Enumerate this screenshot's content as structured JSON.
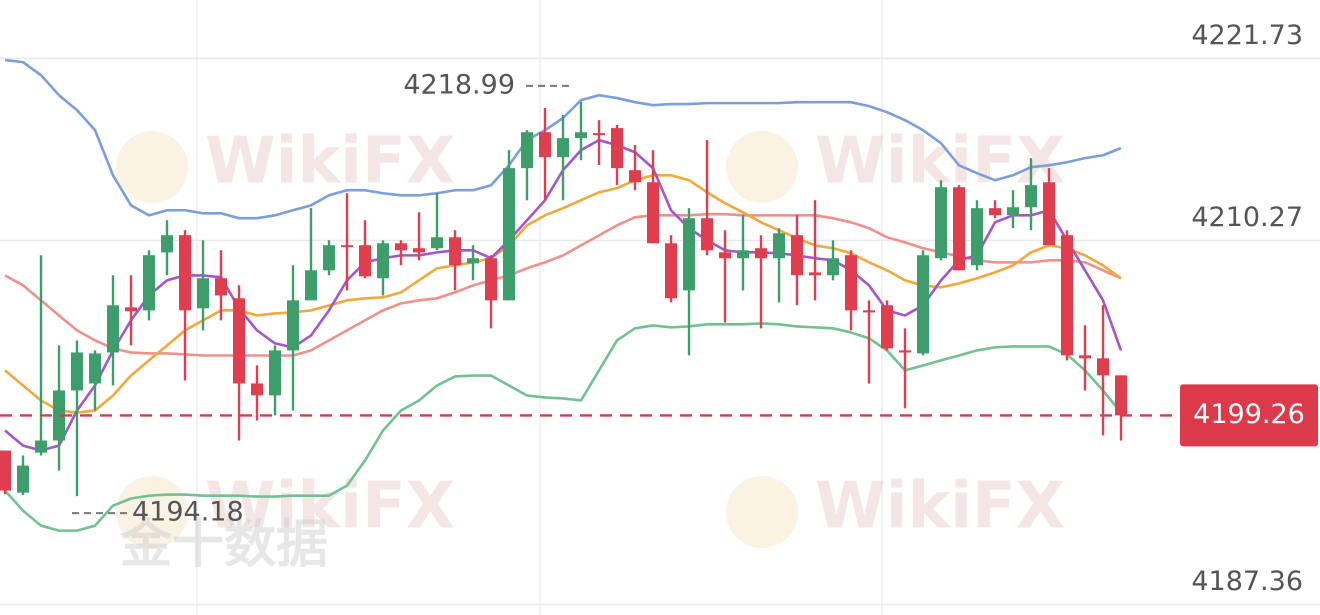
{
  "chart_data": {
    "type": "candlestick",
    "ylim": [
      4186.7,
      4225.4
    ],
    "yticks": [
      4221.73,
      4210.27,
      4187.36
    ],
    "grid": true,
    "up_color": "#3e9e6b",
    "down_color": "#e03e4e",
    "current_price": 4199.26,
    "current_price_color": "#dc3a4a",
    "high_label": 4218.99,
    "low_label": 4194.18,
    "watermarks": [
      "WikiFX",
      "WikiFX",
      "WikiFX",
      "WikiFX"
    ],
    "watermark_cn": "金十数据",
    "candles": {
      "open": [
        4197.05,
        4194.4,
        4196.92,
        4197.68,
        4200.83,
        4201.27,
        4203.22,
        4206.06,
        4205.87,
        4209.52,
        4210.6,
        4206.0,
        4207.89,
        4206.63,
        4201.27,
        4200.52,
        4203.35,
        4206.5,
        4208.39,
        4209.97,
        4209.97,
        4207.89,
        4210.09,
        4209.78,
        4209.78,
        4210.47,
        4208.83,
        4209.15,
        4206.5,
        4214.82,
        4217.08,
        4215.51,
        4216.71,
        4217.02,
        4217.34,
        4214.69,
        4213.93,
        4210.09,
        4207.13,
        4211.67,
        4209.52,
        4209.15,
        4209.78,
        4209.15,
        4210.6,
        4208.26,
        4208.08,
        4209.34,
        4205.87,
        4206.19,
        4203.35,
        4203.16,
        4209.15,
        4213.62,
        4208.71,
        4212.3,
        4211.86,
        4212.36,
        4213.93,
        4210.6,
        4203.04,
        4202.85,
        4201.78
      ],
      "high": [
        4197.05,
        4196.74,
        4209.34,
        4203.67,
        4203.98,
        4203.35,
        4208.08,
        4208.08,
        4209.65,
        4211.54,
        4210.91,
        4210.28,
        4209.65,
        4207.45,
        4202.41,
        4203.67,
        4208.71,
        4212.3,
        4210.28,
        4213.24,
        4211.54,
        4210.28,
        4210.28,
        4212.04,
        4213.24,
        4210.91,
        4209.97,
        4209.34,
        4215.95,
        4217.21,
        4218.6,
        4218.16,
        4218.99,
        4217.84,
        4217.53,
        4216.27,
        4215.95,
        4210.6,
        4212.3,
        4216.58,
        4210.91,
        4211.86,
        4210.6,
        4211.04,
        4211.86,
        4212.8,
        4210.28,
        4209.65,
        4206.5,
        4206.5,
        4204.74,
        4209.65,
        4214.06,
        4213.75,
        4212.8,
        4212.8,
        4213.43,
        4215.45,
        4214.82,
        4210.91,
        4204.93,
        4206.19,
        4201.78
      ],
      "low": [
        4194.3,
        4194.25,
        4196.74,
        4195.79,
        4194.18,
        4199.57,
        4201.15,
        4203.67,
        4205.24,
        4208.08,
        4201.46,
        4204.61,
        4205.24,
        4197.68,
        4198.94,
        4199.26,
        4199.57,
        4206.5,
        4208.08,
        4207.13,
        4207.89,
        4206.81,
        4208.71,
        4209.02,
        4209.65,
        4207.13,
        4207.76,
        4204.74,
        4206.5,
        4212.8,
        4212.8,
        4212.8,
        4215.32,
        4215.01,
        4213.75,
        4213.43,
        4210.09,
        4206.37,
        4203.04,
        4209.34,
        4205.11,
        4207.13,
        4204.74,
        4206.37,
        4206.19,
        4206.5,
        4207.76,
        4204.61,
        4201.27,
        4203.35,
        4199.7,
        4203.04,
        4209.02,
        4208.39,
        4208.39,
        4211.67,
        4211.04,
        4210.91,
        4209.97,
        4202.72,
        4200.83,
        4198.0,
        4197.68
      ],
      "close": [
        4194.53,
        4196.1,
        4197.68,
        4200.83,
        4203.22,
        4203.16,
        4206.19,
        4205.81,
        4209.34,
        4210.6,
        4205.87,
        4207.89,
        4206.81,
        4201.27,
        4200.52,
        4203.35,
        4206.5,
        4208.39,
        4209.97,
        4209.9,
        4208.01,
        4210.09,
        4209.65,
        4209.52,
        4210.47,
        4208.71,
        4209.15,
        4206.5,
        4214.82,
        4217.08,
        4215.51,
        4216.71,
        4217.08,
        4216.95,
        4214.82,
        4213.93,
        4210.09,
        4206.63,
        4211.67,
        4209.65,
        4209.15,
        4209.65,
        4209.15,
        4210.72,
        4208.08,
        4208.08,
        4209.15,
        4205.87,
        4205.74,
        4203.48,
        4203.22,
        4209.34,
        4213.62,
        4208.39,
        4212.3,
        4211.86,
        4212.36,
        4213.75,
        4209.97,
        4203.04,
        4202.85,
        4201.78,
        4199.26
      ]
    },
    "lines": [
      {
        "color": "#7b9edc",
        "values": [
          4221.62,
          4221.49,
          4220.67,
          4219.41,
          4218.47,
          4217.21,
          4214.37,
          4212.48,
          4211.85,
          4212.17,
          4212.17,
          4211.98,
          4211.98,
          4211.67,
          4211.67,
          4211.85,
          4212.17,
          4212.48,
          4213.11,
          4213.43,
          4213.43,
          4213.24,
          4213.11,
          4213.11,
          4213.24,
          4213.43,
          4213.43,
          4213.74,
          4215.0,
          4216.58,
          4217.21,
          4217.97,
          4219.1,
          4219.41,
          4219.23,
          4218.97,
          4218.78,
          4218.85,
          4218.85,
          4218.91,
          4218.91,
          4218.91,
          4218.91,
          4218.91,
          4218.97,
          4218.97,
          4218.97,
          4218.97,
          4218.72,
          4218.34,
          4217.84,
          4217.21,
          4216.39,
          4215.0,
          4214.5,
          4214.06,
          4214.37,
          4214.88,
          4215.0,
          4215.19,
          4215.45,
          4215.63,
          4216.08
        ]
      },
      {
        "color": "#72c191",
        "values": [
          4194.53,
          4193.27,
          4192.32,
          4192.01,
          4192.01,
          4192.32,
          4193.58,
          4194.03,
          4194.21,
          4194.28,
          4194.28,
          4194.21,
          4194.21,
          4194.21,
          4194.15,
          4194.15,
          4194.21,
          4194.21,
          4194.21,
          4194.84,
          4196.42,
          4198.31,
          4199.57,
          4200.2,
          4201.14,
          4201.71,
          4201.77,
          4201.77,
          4201.14,
          4200.51,
          4200.39,
          4200.33,
          4200.2,
          4202.09,
          4203.98,
          4204.74,
          4204.92,
          4204.8,
          4204.86,
          4204.99,
          4204.99,
          4204.99,
          4205.05,
          4204.99,
          4204.86,
          4204.8,
          4204.74,
          4204.48,
          4204.11,
          4203.35,
          4202.09,
          4202.4,
          4202.72,
          4203.03,
          4203.35,
          4203.54,
          4203.6,
          4203.6,
          4203.6,
          4203.1,
          4202.09,
          4200.83,
          4199.44
        ]
      },
      {
        "color": "#f0908b",
        "values": [
          4208.07,
          4207.44,
          4206.5,
          4205.55,
          4204.61,
          4203.98,
          4203.48,
          4203.22,
          4203.16,
          4203.16,
          4203.1,
          4203.03,
          4203.03,
          4203.03,
          4203.03,
          4203.03,
          4203.03,
          4203.35,
          4203.98,
          4204.61,
          4205.24,
          4205.87,
          4206.31,
          4206.5,
          4206.63,
          4207.0,
          4207.44,
          4207.76,
          4208.07,
          4208.52,
          4208.89,
          4209.33,
          4209.96,
          4210.59,
          4211.22,
          4211.73,
          4211.85,
          4211.85,
          4211.85,
          4211.92,
          4211.92,
          4211.85,
          4211.85,
          4211.85,
          4211.85,
          4211.85,
          4211.67,
          4211.41,
          4211.04,
          4210.47,
          4210.15,
          4209.78,
          4209.52,
          4209.27,
          4209.02,
          4208.89,
          4208.89,
          4208.89,
          4209.02,
          4209.02,
          4208.89,
          4208.39,
          4207.89
        ]
      },
      {
        "color": "#f2a83b",
        "values": [
          4202.09,
          4201.14,
          4200.2,
          4199.57,
          4199.44,
          4199.57,
          4200.51,
          4201.77,
          4202.72,
          4203.66,
          4204.61,
          4205.24,
          4205.87,
          4205.87,
          4205.55,
          4205.68,
          4205.74,
          4205.87,
          4206.18,
          4206.5,
          4206.63,
          4206.69,
          4207.0,
          4207.76,
          4208.52,
          4208.7,
          4208.89,
          4209.15,
          4209.96,
          4211.22,
          4211.85,
          4212.3,
          4212.8,
          4213.3,
          4213.56,
          4214.06,
          4214.37,
          4214.37,
          4214.06,
          4213.3,
          4212.61,
          4212.04,
          4211.41,
          4210.91,
          4210.41,
          4209.96,
          4209.78,
          4209.46,
          4208.89,
          4208.39,
          4207.76,
          4207.44,
          4207.32,
          4207.57,
          4207.89,
          4208.26,
          4208.7,
          4209.52,
          4209.96,
          4209.78,
          4209.33,
          4208.7,
          4207.89
        ]
      },
      {
        "color": "#a554cc",
        "values": [
          4198.31,
          4197.36,
          4197.05,
          4197.36,
          4199.57,
          4201.14,
          4203.35,
          4205.24,
          4206.81,
          4207.76,
          4208.07,
          4208.07,
          4207.95,
          4206.0,
          4204.61,
          4203.79,
          4203.54,
          4204.29,
          4205.87,
          4207.76,
          4208.89,
          4209.15,
          4209.33,
          4209.33,
          4209.52,
          4209.65,
          4209.65,
          4209.15,
          4210.28,
          4211.54,
          4212.8,
          4214.69,
          4215.95,
          4216.58,
          4216.26,
          4215.82,
          4214.82,
          4212.17,
          4211.04,
          4210.28,
          4209.65,
          4209.52,
          4209.52,
          4209.46,
          4209.33,
          4209.15,
          4209.02,
          4208.39,
          4207.44,
          4205.87,
          4205.55,
          4206.18,
          4207.76,
          4209.02,
          4209.33,
          4211.41,
          4211.85,
          4211.85,
          4212.17,
          4210.28,
          4208.39,
          4206.5,
          4203.35
        ]
      }
    ]
  }
}
